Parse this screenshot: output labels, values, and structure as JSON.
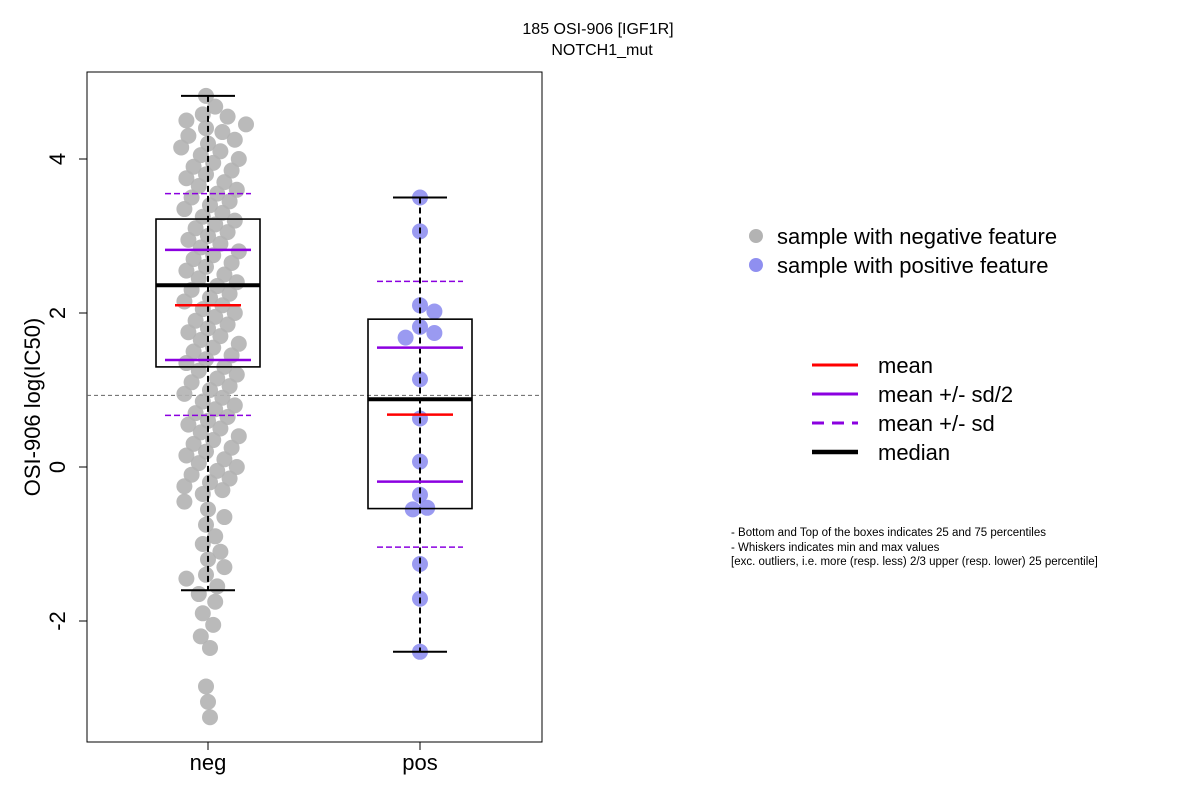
{
  "chart_data": {
    "type": "scatter",
    "subtype": "beeswarm-boxplot",
    "title": "185 OSI-906 [IGF1R]",
    "subtitle": "NOTCH1_mut",
    "xlabel": "",
    "ylabel": "OSI-906 log(IC50)",
    "categories": [
      "neg",
      "pos"
    ],
    "ylim": [
      -3.6,
      5.1
    ],
    "yticks": [
      -2,
      0,
      2,
      4
    ],
    "ytick_labels": [
      "-2",
      "0",
      "2",
      "4"
    ],
    "reference_line_y": 0.93,
    "grid": false,
    "legend_position": "right",
    "colors": {
      "negative_points": "#b3b3b3",
      "positive_points": "#8f8ff0",
      "mean": "#ff0000",
      "sd": "#8b00e0",
      "median": "#000000"
    },
    "series": [
      {
        "name": "sample with negative feature",
        "category": "neg",
        "box": {
          "q1": 1.3,
          "median": 2.36,
          "q3": 3.22,
          "whisker_low": -1.6,
          "whisker_high": 4.82
        },
        "mean": 2.1,
        "mean_minus_half_sd": 1.39,
        "mean_plus_half_sd": 2.82,
        "mean_minus_sd": 0.67,
        "mean_plus_sd": 3.55,
        "values": [
          4.82,
          4.68,
          4.58,
          4.55,
          4.5,
          4.45,
          4.4,
          4.35,
          4.3,
          4.25,
          4.2,
          4.15,
          4.1,
          4.05,
          4.0,
          3.95,
          3.9,
          3.85,
          3.8,
          3.75,
          3.7,
          3.65,
          3.6,
          3.55,
          3.5,
          3.45,
          3.4,
          3.35,
          3.3,
          3.25,
          3.2,
          3.15,
          3.1,
          3.05,
          3.0,
          2.95,
          2.9,
          2.85,
          2.8,
          2.75,
          2.7,
          2.65,
          2.6,
          2.55,
          2.5,
          2.45,
          2.4,
          2.35,
          2.3,
          2.25,
          2.2,
          2.15,
          2.1,
          2.05,
          2.0,
          1.95,
          1.9,
          1.85,
          1.8,
          1.75,
          1.7,
          1.65,
          1.6,
          1.55,
          1.5,
          1.45,
          1.4,
          1.35,
          1.3,
          1.25,
          1.2,
          1.15,
          1.1,
          1.05,
          1.0,
          0.95,
          0.9,
          0.85,
          0.8,
          0.75,
          0.7,
          0.65,
          0.6,
          0.55,
          0.5,
          0.45,
          0.4,
          0.35,
          0.3,
          0.25,
          0.2,
          0.15,
          0.1,
          0.05,
          0.0,
          -0.05,
          -0.1,
          -0.15,
          -0.2,
          -0.25,
          -0.3,
          -0.35,
          -0.45,
          -0.55,
          -0.65,
          -0.75,
          -0.9,
          -1.0,
          -1.1,
          -1.2,
          -1.3,
          -1.4,
          -1.45,
          -1.55,
          -1.65,
          -1.75,
          -1.9,
          -2.05,
          -2.2,
          -2.35,
          -2.85,
          -3.05,
          -3.25
        ]
      },
      {
        "name": "sample with positive feature",
        "category": "pos",
        "box": {
          "q1": -0.54,
          "median": 0.88,
          "q3": 1.92,
          "whisker_low": -2.4,
          "whisker_high": 3.5
        },
        "mean": 0.68,
        "mean_minus_half_sd": -0.19,
        "mean_plus_half_sd": 1.55,
        "mean_minus_sd": -1.04,
        "mean_plus_sd": 2.41,
        "values": [
          3.5,
          3.06,
          2.1,
          2.02,
          1.82,
          1.74,
          1.68,
          1.14,
          0.63,
          0.07,
          -0.36,
          -0.53,
          -0.55,
          -1.26,
          -1.71,
          -2.4
        ]
      }
    ]
  },
  "legend": {
    "points": [
      {
        "label": "sample with negative feature",
        "color": "#b3b3b3"
      },
      {
        "label": "sample with positive feature",
        "color": "#8f8ff0"
      }
    ],
    "lines": [
      {
        "label": "mean",
        "color": "#ff0000",
        "style": "solid"
      },
      {
        "label": "mean +/- sd/2",
        "color": "#8b00e0",
        "style": "solid"
      },
      {
        "label": "mean +/- sd",
        "color": "#8b00e0",
        "style": "dashed"
      },
      {
        "label": "median",
        "color": "#000000",
        "style": "thick"
      }
    ]
  },
  "notes": [
    "- Bottom and Top of the boxes indicates 25 and 75 percentiles",
    "- Whiskers indicates min and max values",
    "[exc. outliers, i.e. more (resp. less) 2/3 upper (resp. lower) 25 percentile]"
  ]
}
